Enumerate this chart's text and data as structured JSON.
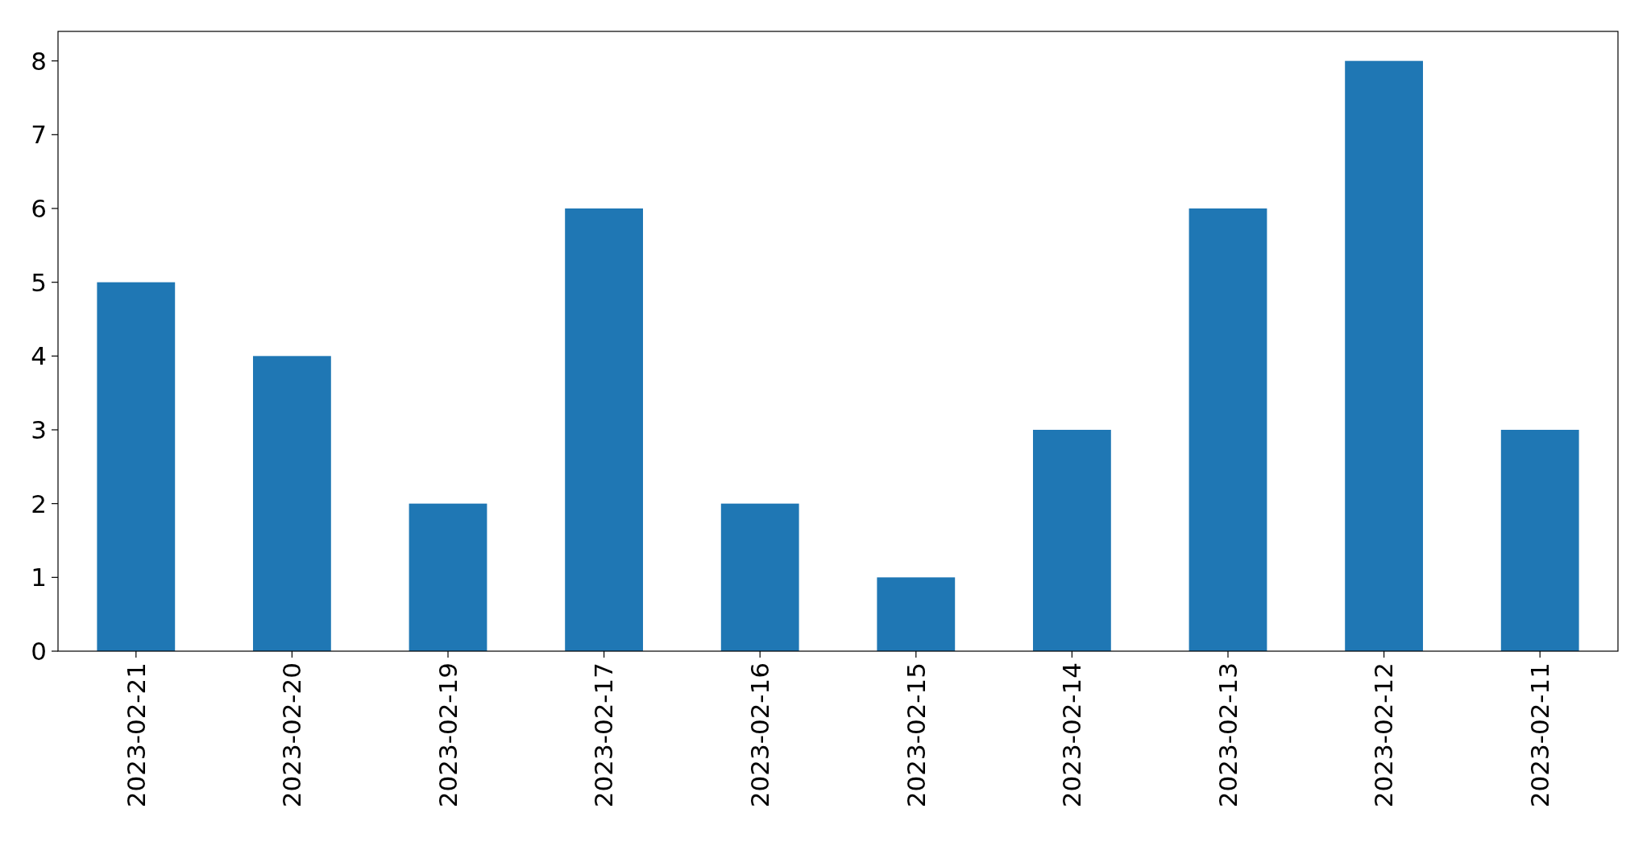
{
  "chart_data": {
    "type": "bar",
    "categories": [
      "2023-02-21",
      "2023-02-20",
      "2023-02-19",
      "2023-02-17",
      "2023-02-16",
      "2023-02-15",
      "2023-02-14",
      "2023-02-13",
      "2023-02-12",
      "2023-02-11"
    ],
    "values": [
      5,
      4,
      2,
      6,
      2,
      1,
      3,
      6,
      8,
      3
    ],
    "color": "#1f77b4",
    "ylim": [
      0,
      8.4
    ],
    "yticks": [
      0,
      1,
      2,
      3,
      4,
      5,
      6,
      7,
      8
    ],
    "grid": false
  }
}
